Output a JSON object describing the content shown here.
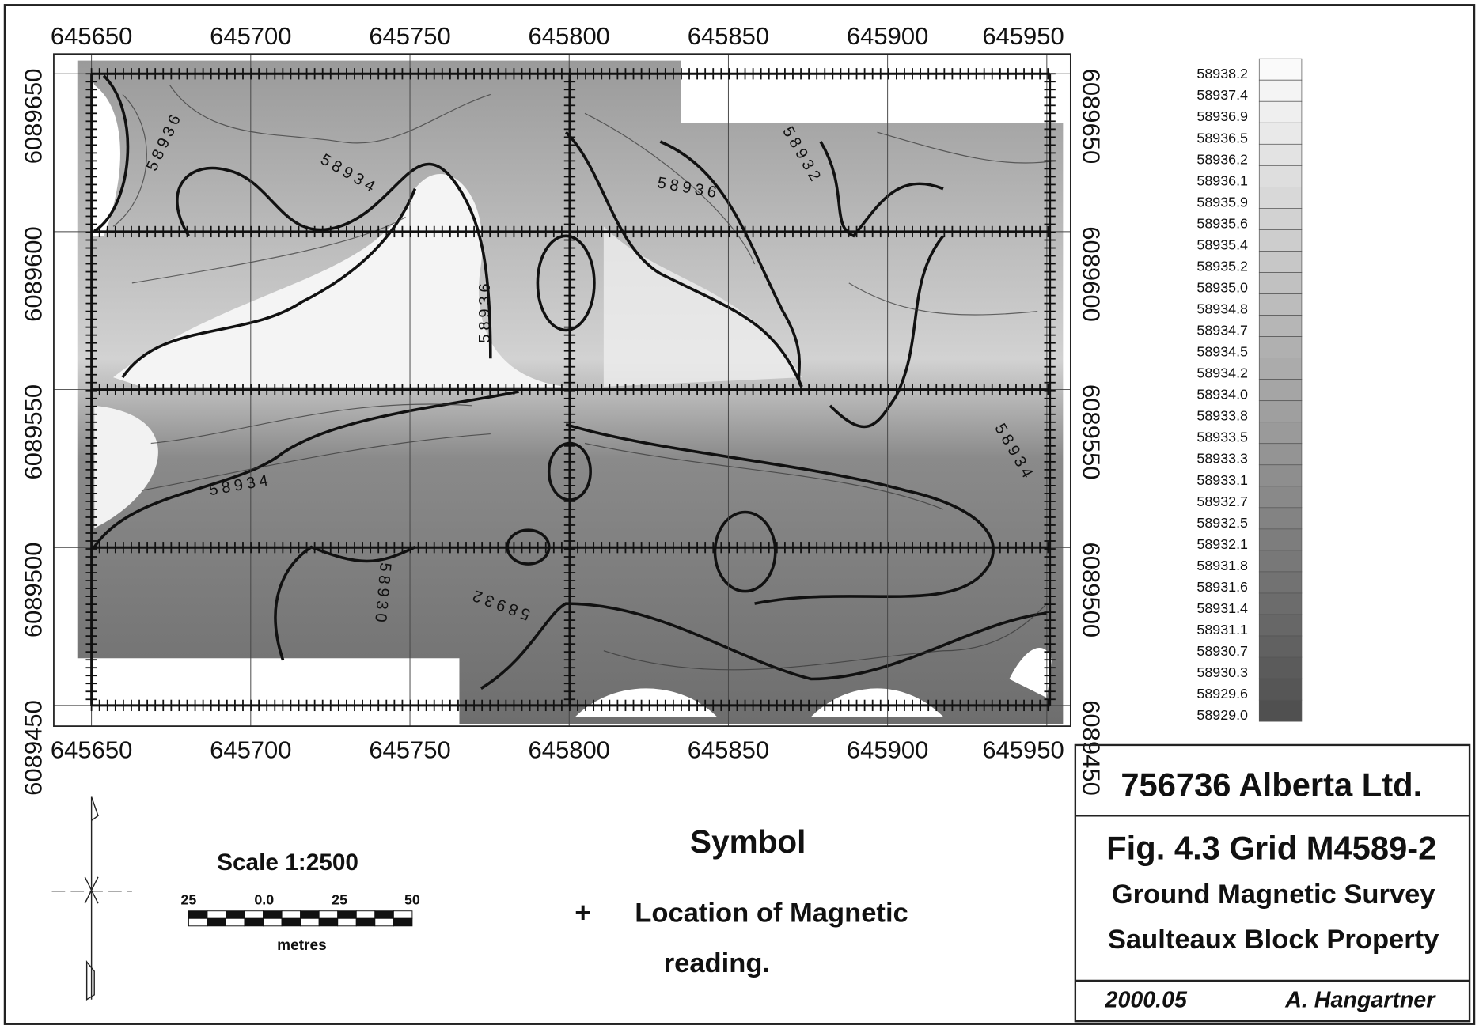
{
  "map": {
    "x_labels": [
      "645650",
      "645700",
      "645750",
      "645800",
      "645850",
      "645900",
      "645950"
    ],
    "y_labels": [
      "6089650",
      "6089600",
      "6089550",
      "6089500",
      "6089450"
    ],
    "contour_labels": [
      "58936",
      "58934",
      "58936",
      "58936",
      "58932",
      "58934",
      "58934",
      "58932",
      "58930"
    ]
  },
  "legend": {
    "values": [
      "58938.2",
      "58937.4",
      "58936.9",
      "58936.5",
      "58936.2",
      "58936.1",
      "58935.9",
      "58935.6",
      "58935.4",
      "58935.2",
      "58935.0",
      "58934.8",
      "58934.7",
      "58934.5",
      "58934.2",
      "58934.0",
      "58933.8",
      "58933.5",
      "58933.3",
      "58933.1",
      "58932.7",
      "58932.5",
      "58932.1",
      "58931.8",
      "58931.6",
      "58931.4",
      "58931.1",
      "58930.7",
      "58930.3",
      "58929.6",
      "58929.0"
    ]
  },
  "scale": {
    "title": "Scale 1:2500",
    "ticks": [
      "25",
      "0.0",
      "25",
      "50"
    ],
    "unit": "metres"
  },
  "symbol": {
    "heading": "Symbol",
    "marker": "+",
    "lines": [
      "Location of Magnetic",
      "reading."
    ]
  },
  "title_block": {
    "company": "756736 Alberta Ltd.",
    "figure": "Fig. 4.3 Grid M4589-2",
    "subtitle": "Ground Magnetic Survey",
    "property": "Saulteaux Block Property",
    "date": "2000.05",
    "author": "A. Hangartner"
  }
}
